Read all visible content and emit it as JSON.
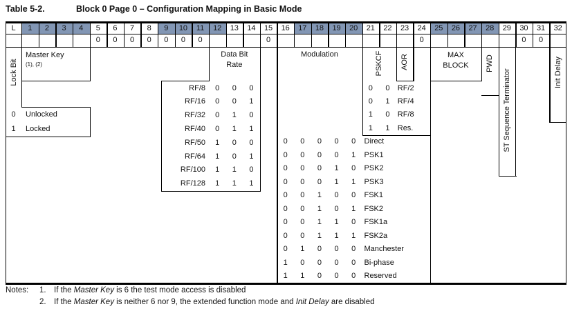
{
  "title": {
    "label": "Table 5-2.",
    "text": "Block 0 Page 0 – Configuration Mapping in Basic Mode"
  },
  "colors": {
    "header_shade": "#8296b4",
    "border": "#000000"
  },
  "bit_header": {
    "lock_col": "L",
    "bits": [
      "1",
      "2",
      "3",
      "4",
      "5",
      "6",
      "7",
      "8",
      "9",
      "10",
      "11",
      "12",
      "13",
      "14",
      "15",
      "16",
      "17",
      "18",
      "19",
      "20",
      "21",
      "22",
      "23",
      "24",
      "25",
      "26",
      "27",
      "28",
      "29",
      "30",
      "31",
      "32"
    ],
    "shaded_bits": [
      1,
      2,
      3,
      4,
      9,
      10,
      11,
      12,
      17,
      18,
      19,
      20,
      25,
      26,
      27,
      28
    ]
  },
  "preset_values": {
    "5": "0",
    "6": "0",
    "7": "0",
    "8": "0",
    "9": "0",
    "10": "0",
    "11": "0",
    "15": "0",
    "24": "0",
    "30": "0",
    "31": "0"
  },
  "fields": {
    "lock_bit": {
      "label": "Lock Bit",
      "options": [
        {
          "value": "0",
          "label": "Unlocked"
        },
        {
          "value": "1",
          "label": "Locked"
        }
      ]
    },
    "master_key": {
      "label": "Master Key",
      "superscript": "(1), (2)"
    },
    "data_bit_rate": {
      "label_line1": "Data Bit",
      "label_line2": "Rate",
      "rows": [
        {
          "label": "RF/8",
          "bits": [
            "0",
            "0",
            "0"
          ]
        },
        {
          "label": "RF/16",
          "bits": [
            "0",
            "0",
            "1"
          ]
        },
        {
          "label": "RF/32",
          "bits": [
            "0",
            "1",
            "0"
          ]
        },
        {
          "label": "RF/40",
          "bits": [
            "0",
            "1",
            "1"
          ]
        },
        {
          "label": "RF/50",
          "bits": [
            "1",
            "0",
            "0"
          ]
        },
        {
          "label": "RF/64",
          "bits": [
            "1",
            "0",
            "1"
          ]
        },
        {
          "label": "RF/100",
          "bits": [
            "1",
            "1",
            "0"
          ]
        },
        {
          "label": "RF/128",
          "bits": [
            "1",
            "1",
            "1"
          ]
        }
      ]
    },
    "modulation": {
      "label": "Modulation",
      "rows": [
        {
          "bits": [
            "0",
            "0",
            "0",
            "0",
            "0"
          ],
          "label": "Direct"
        },
        {
          "bits": [
            "0",
            "0",
            "0",
            "0",
            "1"
          ],
          "label": "PSK1"
        },
        {
          "bits": [
            "0",
            "0",
            "0",
            "1",
            "0"
          ],
          "label": "PSK2"
        },
        {
          "bits": [
            "0",
            "0",
            "0",
            "1",
            "1"
          ],
          "label": "PSK3"
        },
        {
          "bits": [
            "0",
            "0",
            "1",
            "0",
            "0"
          ],
          "label": "FSK1"
        },
        {
          "bits": [
            "0",
            "0",
            "1",
            "0",
            "1"
          ],
          "label": "FSK2"
        },
        {
          "bits": [
            "0",
            "0",
            "1",
            "1",
            "0"
          ],
          "label": "FSK1a"
        },
        {
          "bits": [
            "0",
            "0",
            "1",
            "1",
            "1"
          ],
          "label": "FSK2a"
        },
        {
          "bits": [
            "0",
            "1",
            "0",
            "0",
            "0"
          ],
          "label": "Manchester"
        },
        {
          "bits": [
            "1",
            "0",
            "0",
            "0",
            "0"
          ],
          "label": "Bi-phase"
        },
        {
          "bits": [
            "1",
            "1",
            "0",
            "0",
            "0"
          ],
          "label": "Reserved"
        }
      ]
    },
    "pskcf": {
      "label": "PSKCF",
      "rows": [
        {
          "bits": [
            "0",
            "0"
          ],
          "label": "RF/2"
        },
        {
          "bits": [
            "0",
            "1"
          ],
          "label": "RF/4"
        },
        {
          "bits": [
            "1",
            "0"
          ],
          "label": "RF/8"
        },
        {
          "bits": [
            "1",
            "1"
          ],
          "label": "Res."
        }
      ]
    },
    "aor": {
      "label": "AOR"
    },
    "max_block": {
      "label_line1": "MAX",
      "label_line2": "BLOCK"
    },
    "pwd": {
      "label": "PWD"
    },
    "st_terminator": {
      "label": "ST Sequence Terminator"
    },
    "init_delay": {
      "label": "Init Delay"
    }
  },
  "notes": {
    "label": "Notes:",
    "items": [
      {
        "num": "1.",
        "segments": [
          {
            "t": "If the "
          },
          {
            "t": "Master Key",
            "i": true
          },
          {
            "t": " is 6 the test mode access is disabled"
          }
        ]
      },
      {
        "num": "2.",
        "segments": [
          {
            "t": "If the "
          },
          {
            "t": "Master Key",
            "i": true
          },
          {
            "t": " is neither 6 nor 9, the extended function mode and "
          },
          {
            "t": "Init Delay",
            "i": true
          },
          {
            "t": " are disabled"
          }
        ]
      }
    ]
  }
}
